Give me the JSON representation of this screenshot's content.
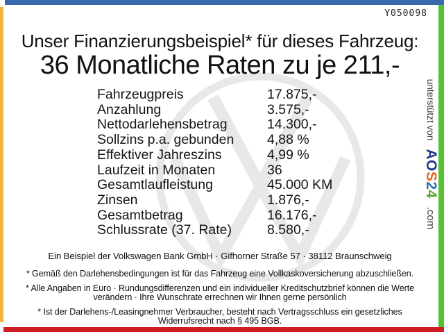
{
  "window": {
    "ref_code": "Y050098"
  },
  "header": {
    "title": "Unser Finanzierungsbeispiel* für dieses Fahrzeug:",
    "subtitle": "36 Monatliche Raten zu je 211,-"
  },
  "finance_table": {
    "rows": [
      {
        "label": "Fahrzeugpreis",
        "value": "17.875,-"
      },
      {
        "label": "Anzahlung",
        "value": "3.575,-"
      },
      {
        "label": "Nettodarlehensbetrag",
        "value": "14.300,-"
      },
      {
        "label": "Sollzins p.a. gebunden",
        "value": "4,88 %"
      },
      {
        "label": "Effektiver Jahreszins",
        "value": "4,99 %"
      },
      {
        "label": "Laufzeit in Monaten",
        "value": "36"
      },
      {
        "label": "Gesamtlaufleistung",
        "value": "45.000 KM"
      },
      {
        "label": "Zinsen",
        "value": "1.876,-"
      },
      {
        "label": "Gesamtbetrag",
        "value": "16.176,-"
      },
      {
        "label": "Schlussrate (37. Rate)",
        "value": "8.580,-"
      }
    ]
  },
  "footer": {
    "bank_line": "Ein Beispiel der Volkswagen Bank GmbH · Gifhorner Straße 57 · 38112 Braunschweig",
    "footnotes": [
      "* Gemäß den Darlehensbedingungen ist für das Fahrzeug eine Vollkaskoversicherung abzuschließen.",
      "* Alle Angaben in Euro · Rundungsdifferenzen und ein individueller Kreditschutzbrief können die Werte verändern · Ihre Wunschrate errechnen wir Ihnen gerne persönlich",
      "* Ist der Darlehens-/Leasingnehmer Verbraucher, besteht nach Vertragsschluss ein gesetzliches Widerrufsrecht nach § 495 BGB."
    ]
  },
  "brand_sidebar": {
    "supported_by": "unterstützt von",
    "logo_letters": [
      {
        "char": "A",
        "color": "#24388b"
      },
      {
        "char": "O",
        "color": "#24388b"
      },
      {
        "char": "S",
        "color": "#e8641f"
      },
      {
        "char": "2",
        "color": "#2f6cb3"
      },
      {
        "char": "4",
        "color": "#58a52f"
      }
    ],
    "domain_suffix": ".com"
  },
  "watermark": {
    "icon": "vw-logo",
    "color": "#e6e8ea"
  },
  "frame_colors": {
    "top": "#3a68ae",
    "left": "#f3b33c",
    "right": "#55c233",
    "bottom": "#cf1f25"
  }
}
